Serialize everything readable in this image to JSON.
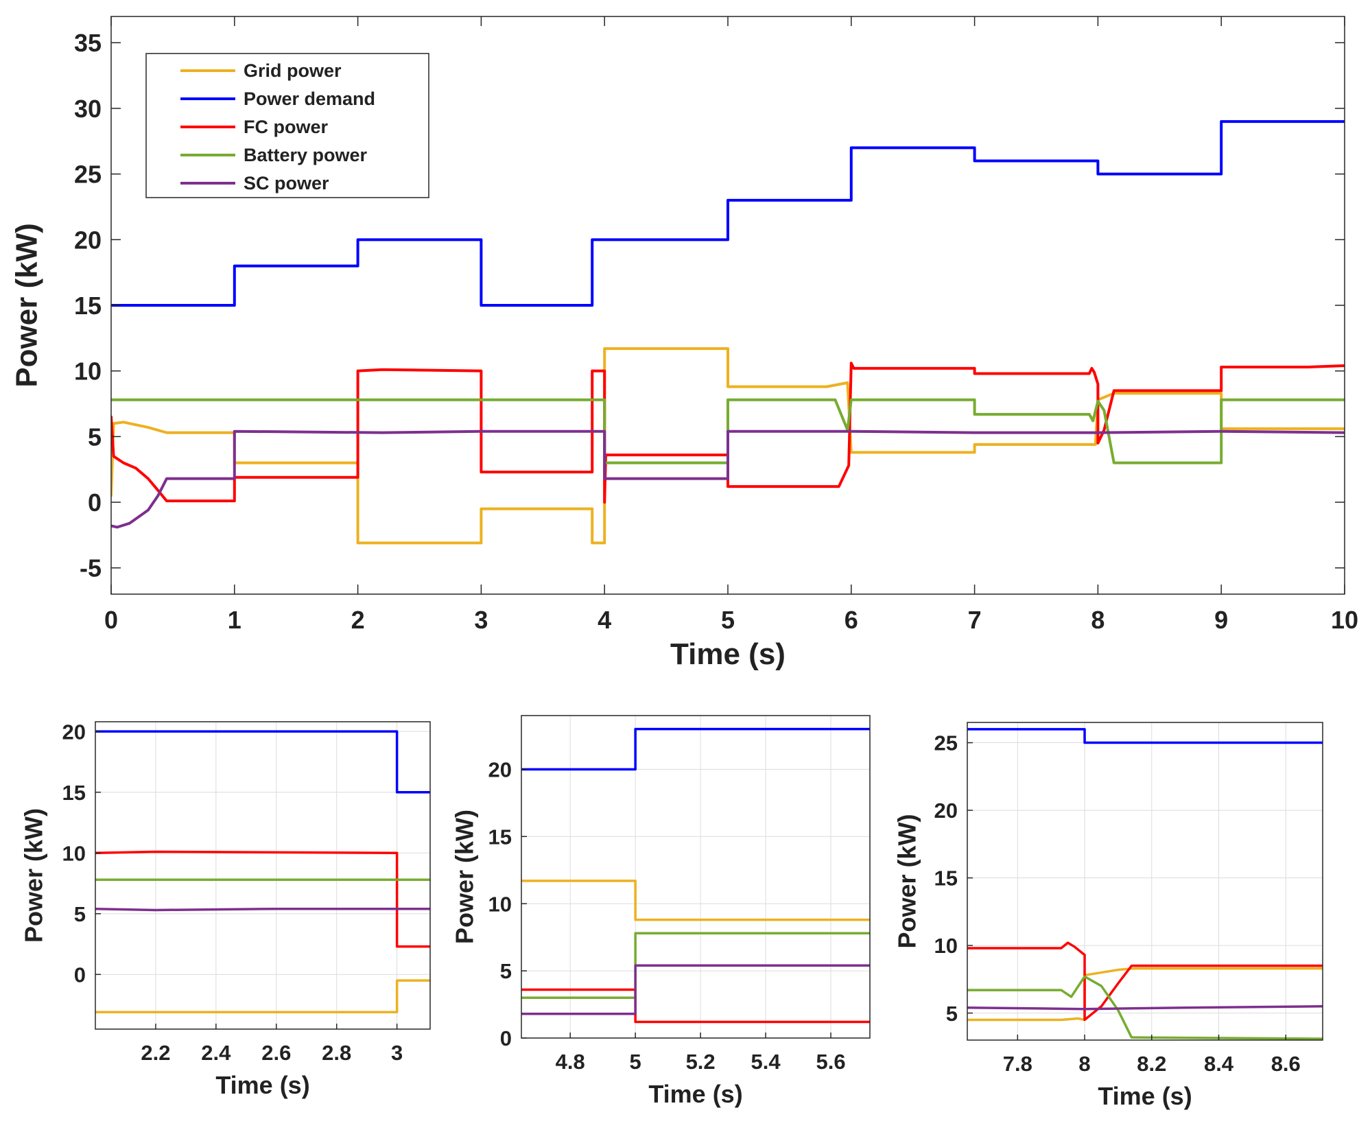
{
  "colors": {
    "grid_power": "#EDB120",
    "power_demand": "#0000FF",
    "fc_power": "#FF0000",
    "battery_power": "#77AC30",
    "sc_power": "#7E2F8E"
  },
  "chart_data": [
    {
      "id": "main",
      "type": "line",
      "title": "",
      "xlabel": "Time (s)",
      "ylabel": "Power (kW)",
      "xlim": [
        0,
        10
      ],
      "ylim": [
        -7,
        37
      ],
      "xticks": [
        0,
        1,
        2,
        3,
        4,
        5,
        6,
        7,
        8,
        9,
        10
      ],
      "yticks": [
        -5,
        0,
        5,
        10,
        15,
        20,
        25,
        30,
        35
      ],
      "grid": false,
      "legend": {
        "position": "top-left",
        "entries": [
          "Grid power",
          "Power demand",
          "FC power",
          "Battery power",
          "SC power"
        ]
      },
      "series": [
        {
          "name": "Grid power",
          "color_key": "grid_power",
          "points": [
            [
              0,
              0.5
            ],
            [
              0.02,
              6.0
            ],
            [
              0.1,
              6.1
            ],
            [
              0.3,
              5.7
            ],
            [
              0.45,
              5.3
            ],
            [
              1,
              5.3
            ],
            [
              1,
              3.0
            ],
            [
              2,
              3.0
            ],
            [
              2,
              -3.1
            ],
            [
              3,
              -3.1
            ],
            [
              3,
              -0.5
            ],
            [
              3.9,
              -0.5
            ],
            [
              3.9,
              -3.1
            ],
            [
              4,
              -3.1
            ],
            [
              4,
              11.7
            ],
            [
              5,
              11.7
            ],
            [
              5,
              8.8
            ],
            [
              5.8,
              8.8
            ],
            [
              5.97,
              9.1
            ],
            [
              6,
              3.8
            ],
            [
              7,
              3.8
            ],
            [
              7,
              4.4
            ],
            [
              7.98,
              4.4
            ],
            [
              8,
              7.8
            ],
            [
              8.13,
              8.3
            ],
            [
              9,
              8.3
            ],
            [
              9,
              5.6
            ],
            [
              10,
              5.6
            ]
          ]
        },
        {
          "name": "Power demand",
          "color_key": "power_demand",
          "points": [
            [
              0,
              15
            ],
            [
              1,
              15
            ],
            [
              1,
              18
            ],
            [
              2,
              18
            ],
            [
              2,
              20
            ],
            [
              3,
              20
            ],
            [
              3,
              15
            ],
            [
              3.9,
              15
            ],
            [
              3.9,
              20
            ],
            [
              5,
              20
            ],
            [
              5,
              23
            ],
            [
              6,
              23
            ],
            [
              6,
              27
            ],
            [
              7,
              27
            ],
            [
              7,
              26
            ],
            [
              8,
              26
            ],
            [
              8,
              25
            ],
            [
              9,
              25
            ],
            [
              9,
              29
            ],
            [
              10,
              29
            ]
          ]
        },
        {
          "name": "FC power",
          "color_key": "fc_power",
          "points": [
            [
              0,
              6.5
            ],
            [
              0.02,
              3.5
            ],
            [
              0.1,
              3.0
            ],
            [
              0.2,
              2.6
            ],
            [
              0.3,
              1.8
            ],
            [
              0.38,
              0.9
            ],
            [
              0.45,
              0.1
            ],
            [
              1,
              0.1
            ],
            [
              1,
              1.9
            ],
            [
              2,
              1.9
            ],
            [
              2,
              10.0
            ],
            [
              2.2,
              10.1
            ],
            [
              3,
              10.0
            ],
            [
              3,
              2.3
            ],
            [
              3.9,
              2.3
            ],
            [
              3.9,
              10.0
            ],
            [
              4,
              10.0
            ],
            [
              4,
              0
            ],
            [
              4.01,
              3.6
            ],
            [
              5,
              3.6
            ],
            [
              5,
              1.2
            ],
            [
              5.9,
              1.2
            ],
            [
              5.98,
              2.8
            ],
            [
              6,
              10.6
            ],
            [
              6.02,
              10.2
            ],
            [
              7,
              10.2
            ],
            [
              7,
              9.8
            ],
            [
              7.93,
              9.8
            ],
            [
              7.95,
              10.2
            ],
            [
              7.97,
              9.9
            ],
            [
              8,
              9.0
            ],
            [
              8,
              4.5
            ],
            [
              8.05,
              5.5
            ],
            [
              8.13,
              8.5
            ],
            [
              9,
              8.5
            ],
            [
              9,
              10.3
            ],
            [
              9.7,
              10.3
            ],
            [
              10,
              10.4
            ]
          ]
        },
        {
          "name": "Battery power",
          "color_key": "battery_power",
          "points": [
            [
              0,
              7.8
            ],
            [
              4,
              7.8
            ],
            [
              4,
              3.0
            ],
            [
              5,
              3.0
            ],
            [
              5,
              7.8
            ],
            [
              5.87,
              7.8
            ],
            [
              5.97,
              5.5
            ],
            [
              6,
              7.8
            ],
            [
              7,
              7.8
            ],
            [
              7,
              6.7
            ],
            [
              7.93,
              6.7
            ],
            [
              7.96,
              6.2
            ],
            [
              8,
              7.7
            ],
            [
              8.05,
              7.0
            ],
            [
              8.13,
              3.0
            ],
            [
              9,
              3.0
            ],
            [
              9,
              7.8
            ],
            [
              10,
              7.8
            ]
          ]
        },
        {
          "name": "SC power",
          "color_key": "sc_power",
          "points": [
            [
              0,
              -1.8
            ],
            [
              0.05,
              -1.9
            ],
            [
              0.15,
              -1.6
            ],
            [
              0.3,
              -0.6
            ],
            [
              0.38,
              0.5
            ],
            [
              0.45,
              1.8
            ],
            [
              1,
              1.8
            ],
            [
              1,
              5.4
            ],
            [
              2.2,
              5.3
            ],
            [
              3,
              5.4
            ],
            [
              4,
              5.4
            ],
            [
              4,
              1.8
            ],
            [
              5,
              1.8
            ],
            [
              5,
              5.4
            ],
            [
              6,
              5.4
            ],
            [
              7,
              5.3
            ],
            [
              8,
              5.3
            ],
            [
              9,
              5.4
            ],
            [
              10,
              5.3
            ]
          ]
        }
      ]
    },
    {
      "id": "zoom1",
      "type": "line",
      "title": "",
      "xlabel": "Time (s)",
      "ylabel": "Power (kW)",
      "xlim": [
        2,
        3.11
      ],
      "ylim": [
        -4.5,
        20.8
      ],
      "xticks": [
        2.2,
        2.4,
        2.6,
        2.8,
        3
      ],
      "xtick_labels": [
        "2.2",
        "2.4",
        "2.6",
        "2.8",
        "3"
      ],
      "yticks": [
        0,
        5,
        10,
        15,
        20
      ],
      "grid": true,
      "series": [
        {
          "name": "Grid power",
          "color_key": "grid_power",
          "points": [
            [
              2,
              -3.1
            ],
            [
              3,
              -3.1
            ],
            [
              3,
              -0.5
            ],
            [
              3.11,
              -0.5
            ]
          ]
        },
        {
          "name": "Power demand",
          "color_key": "power_demand",
          "points": [
            [
              2,
              20
            ],
            [
              3,
              20
            ],
            [
              3,
              15
            ],
            [
              3.11,
              15
            ]
          ]
        },
        {
          "name": "FC power",
          "color_key": "fc_power",
          "points": [
            [
              2,
              10.0
            ],
            [
              2.2,
              10.1
            ],
            [
              3,
              10.0
            ],
            [
              3,
              2.3
            ],
            [
              3.11,
              2.3
            ]
          ]
        },
        {
          "name": "Battery power",
          "color_key": "battery_power",
          "points": [
            [
              2,
              7.8
            ],
            [
              3.11,
              7.8
            ]
          ]
        },
        {
          "name": "SC power",
          "color_key": "sc_power",
          "points": [
            [
              2,
              5.4
            ],
            [
              2.2,
              5.3
            ],
            [
              2.6,
              5.4
            ],
            [
              3.11,
              5.4
            ]
          ]
        }
      ]
    },
    {
      "id": "zoom2",
      "type": "line",
      "title": "",
      "xlabel": "Time (s)",
      "ylabel": "Power (kW)",
      "xlim": [
        4.65,
        5.72
      ],
      "ylim": [
        0,
        24
      ],
      "xticks": [
        4.8,
        5,
        5.2,
        5.4,
        5.6
      ],
      "xtick_labels": [
        "4.8",
        "5",
        "5.2",
        "5.4",
        "5.6"
      ],
      "yticks": [
        0,
        5,
        10,
        15,
        20
      ],
      "grid": true,
      "series": [
        {
          "name": "Grid power",
          "color_key": "grid_power",
          "points": [
            [
              4.65,
              11.7
            ],
            [
              5,
              11.7
            ],
            [
              5,
              8.8
            ],
            [
              5.72,
              8.8
            ]
          ]
        },
        {
          "name": "Power demand",
          "color_key": "power_demand",
          "points": [
            [
              4.65,
              20
            ],
            [
              5,
              20
            ],
            [
              5,
              23
            ],
            [
              5.72,
              23
            ]
          ]
        },
        {
          "name": "FC power",
          "color_key": "fc_power",
          "points": [
            [
              4.65,
              3.6
            ],
            [
              5,
              3.6
            ],
            [
              5,
              1.2
            ],
            [
              5.72,
              1.2
            ]
          ]
        },
        {
          "name": "Battery power",
          "color_key": "battery_power",
          "points": [
            [
              4.65,
              3.0
            ],
            [
              5,
              3.0
            ],
            [
              5,
              7.8
            ],
            [
              5.72,
              7.8
            ]
          ]
        },
        {
          "name": "SC power",
          "color_key": "sc_power",
          "points": [
            [
              4.65,
              1.8
            ],
            [
              5,
              1.8
            ],
            [
              5,
              5.4
            ],
            [
              5.72,
              5.4
            ]
          ]
        }
      ]
    },
    {
      "id": "zoom3",
      "type": "line",
      "title": "",
      "xlabel": "Time (s)",
      "ylabel": "Power (kW)",
      "xlim": [
        7.65,
        8.71
      ],
      "ylim": [
        3,
        26.5
      ],
      "xticks": [
        7.8,
        8,
        8.2,
        8.4,
        8.6
      ],
      "xtick_labels": [
        "7.8",
        "8",
        "8.2",
        "8.4",
        "8.6"
      ],
      "yticks": [
        5,
        10,
        15,
        20,
        25
      ],
      "grid": true,
      "series": [
        {
          "name": "Grid power",
          "color_key": "grid_power",
          "points": [
            [
              7.65,
              4.5
            ],
            [
              7.93,
              4.5
            ],
            [
              7.98,
              4.6
            ],
            [
              8,
              4.5
            ],
            [
              8,
              7.8
            ],
            [
              8.1,
              8.2
            ],
            [
              8.15,
              8.3
            ],
            [
              8.71,
              8.3
            ]
          ]
        },
        {
          "name": "Power demand",
          "color_key": "power_demand",
          "points": [
            [
              7.65,
              26
            ],
            [
              8,
              26
            ],
            [
              8,
              25
            ],
            [
              8.71,
              25
            ]
          ]
        },
        {
          "name": "FC power",
          "color_key": "fc_power",
          "points": [
            [
              7.65,
              9.8
            ],
            [
              7.93,
              9.8
            ],
            [
              7.95,
              10.2
            ],
            [
              7.97,
              9.9
            ],
            [
              8,
              9.3
            ],
            [
              8,
              4.5
            ],
            [
              8.05,
              5.5
            ],
            [
              8.1,
              7.2
            ],
            [
              8.14,
              8.5
            ],
            [
              8.71,
              8.5
            ]
          ]
        },
        {
          "name": "Battery power",
          "color_key": "battery_power",
          "points": [
            [
              7.65,
              6.7
            ],
            [
              7.93,
              6.7
            ],
            [
              7.96,
              6.2
            ],
            [
              8,
              7.7
            ],
            [
              8.05,
              7.0
            ],
            [
              8.1,
              5.2
            ],
            [
              8.14,
              3.2
            ],
            [
              8.71,
              3.1
            ]
          ]
        },
        {
          "name": "SC power",
          "color_key": "sc_power",
          "points": [
            [
              7.65,
              5.4
            ],
            [
              8,
              5.3
            ],
            [
              8.3,
              5.4
            ],
            [
              8.71,
              5.5
            ]
          ]
        }
      ]
    }
  ]
}
